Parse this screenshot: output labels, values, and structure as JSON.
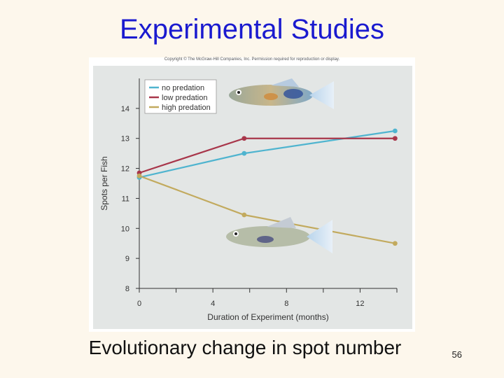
{
  "slide": {
    "title": "Experimental Studies",
    "caption": "Evolutionary change in spot number",
    "page_number": "56"
  },
  "figure": {
    "copyright": "Copyright © The McGraw-Hill Companies, Inc. Permission required for reproduction or display."
  },
  "chart_data": {
    "type": "line",
    "title": "",
    "xlabel": "Duration of Experiment (months)",
    "ylabel": "Spots per Fish",
    "xlim": [
      0,
      14
    ],
    "ylim": [
      8,
      15
    ],
    "x_ticks": [
      0,
      4,
      8,
      12
    ],
    "x_minor_ticks": [
      2,
      6,
      10,
      14
    ],
    "y_ticks": [
      8,
      9,
      10,
      11,
      12,
      13,
      14
    ],
    "grid": false,
    "legend_position": "top-left",
    "series": [
      {
        "name": "no predation",
        "color": "#4fb4cf",
        "x": [
          0,
          5.7,
          13.9
        ],
        "y": [
          11.7,
          12.5,
          13.25
        ]
      },
      {
        "name": "low predation",
        "color": "#a8364a",
        "x": [
          0,
          5.7,
          13.9
        ],
        "y": [
          11.85,
          13.0,
          13.0
        ]
      },
      {
        "name": "high predation",
        "color": "#c2aa5e",
        "x": [
          0,
          5.7,
          13.9
        ],
        "y": [
          11.75,
          10.45,
          9.5
        ]
      }
    ]
  }
}
